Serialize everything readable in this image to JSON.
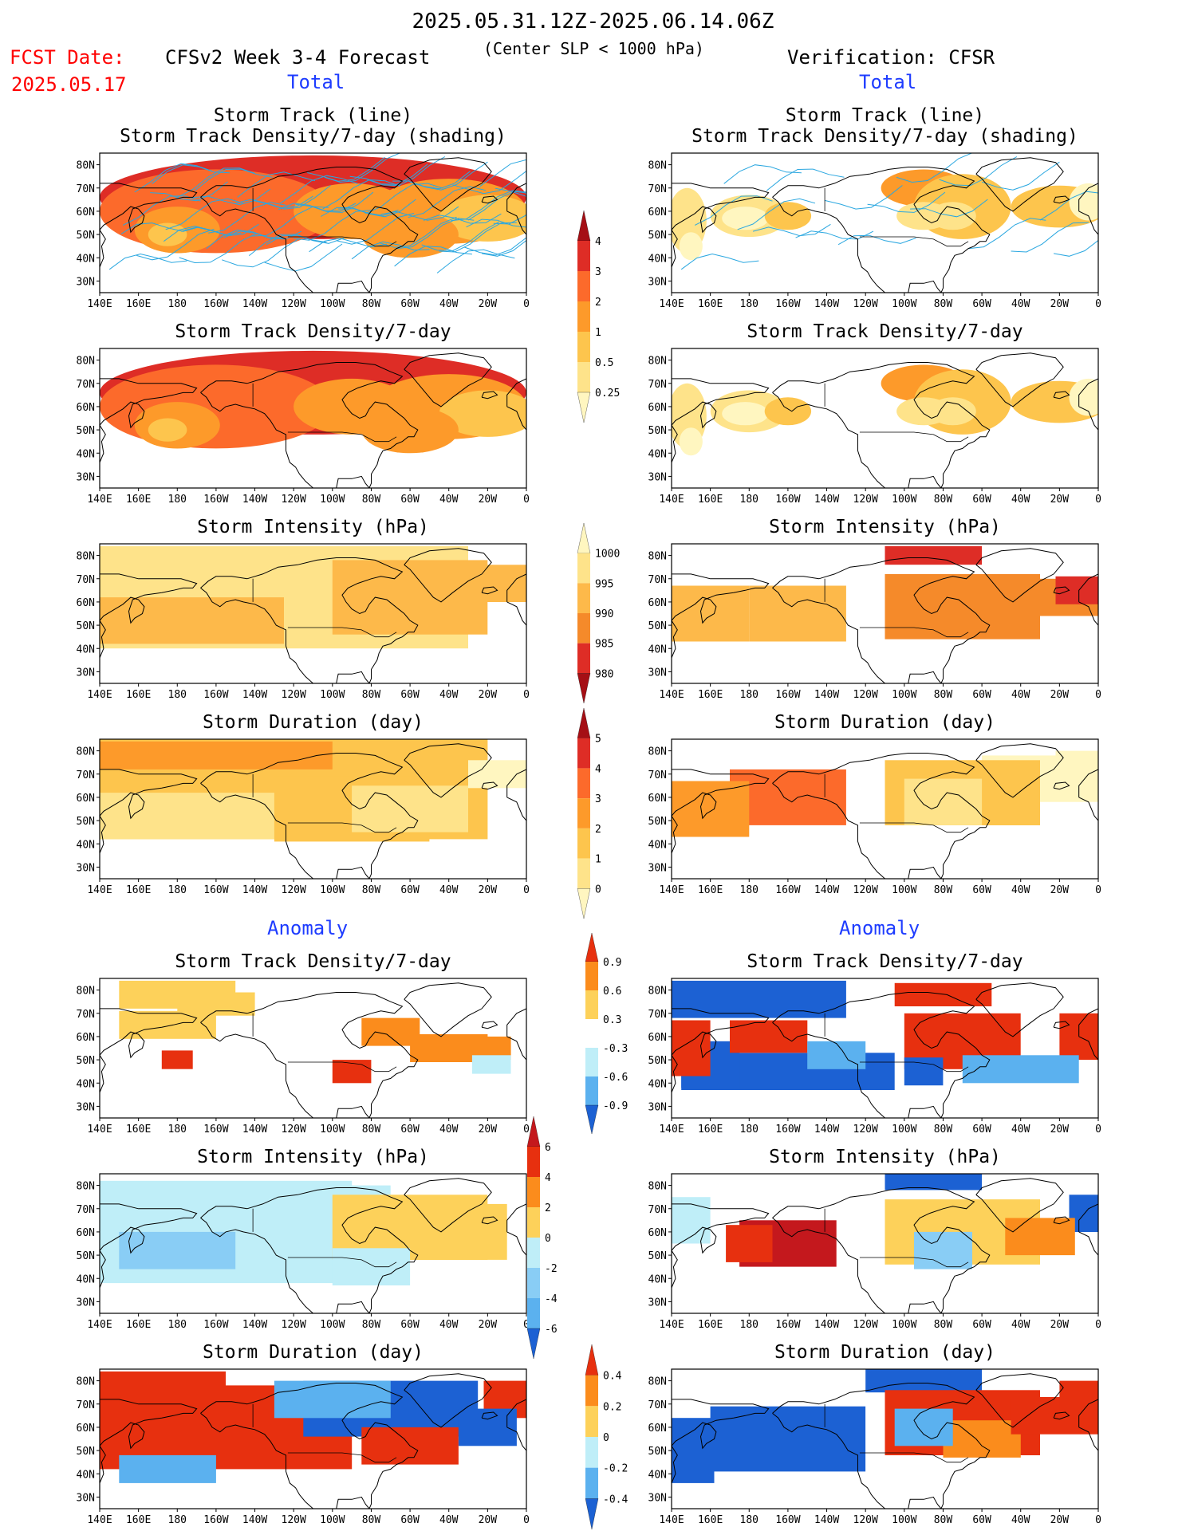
{
  "header": {
    "date_range": "2025.05.31.12Z-2025.06.14.06Z",
    "fcst_label": "FCST Date:",
    "fcst_date": "2025.05.17",
    "left_title": "CFSv2 Week 3-4 Forecast",
    "subtitle": "(Center SLP < 1000 hPa)",
    "right_title": "Verification: CFSR",
    "total_label": "Total",
    "anomaly_label": "Anomaly"
  },
  "panel_titles": {
    "track_line": "Storm Track (line)",
    "track_shading": "Storm Track Density/7-day (shading)",
    "density": "Storm Track Density/7-day",
    "intensity": "Storm Intensity (hPa)",
    "duration": "Storm Duration (day)"
  },
  "axes": {
    "lat_labels": [
      "80N",
      "70N",
      "60N",
      "50N",
      "40N",
      "30N"
    ],
    "lon_labels": [
      "140E",
      "160E",
      "180",
      "160W",
      "140W",
      "120W",
      "100W",
      "80W",
      "60W",
      "40W",
      "20W",
      "0"
    ]
  },
  "colorbars": {
    "density_total": {
      "labels": [
        "4",
        "3",
        "2",
        "1",
        "0.5",
        "0.25"
      ],
      "colors": [
        "#a50f15",
        "#de2d26",
        "#fc6a2b",
        "#fd9a2a",
        "#fdc54d",
        "#fee38a",
        "#fff6c0"
      ]
    },
    "intensity_total": {
      "labels": [
        "1000",
        "995",
        "990",
        "985",
        "980"
      ],
      "colors": [
        "#fff6c0",
        "#fee38a",
        "#fdb94a",
        "#f58a2a",
        "#de2d26",
        "#a50f15"
      ]
    },
    "duration_total": {
      "labels": [
        "5",
        "4",
        "3",
        "2",
        "1",
        "0"
      ],
      "colors": [
        "#a50f15",
        "#de2d26",
        "#fc6a2b",
        "#fd9a2a",
        "#fdc54d",
        "#fee38a",
        "#fff6c0"
      ]
    },
    "density_anom": {
      "labels": [
        "0.9",
        "0.6",
        "0.3",
        "-0.3",
        "-0.6",
        "-0.9"
      ],
      "colors": [
        "#e7300f",
        "#fb8c1c",
        "#fdd15a",
        "#ffffff",
        "#bfeef8",
        "#5bb1ef",
        "#1c61d3"
      ]
    },
    "intensity_anom": {
      "labels": [
        "6",
        "4",
        "2",
        "0",
        "-2",
        "-4",
        "-6"
      ],
      "colors": [
        "#c4181d",
        "#e7300f",
        "#fb8c1c",
        "#fdd15a",
        "#bfeef8",
        "#89cdf5",
        "#5bb1ef",
        "#1c61d3"
      ]
    },
    "duration_anom": {
      "labels": [
        "0.4",
        "0.2",
        "0",
        "-0.2",
        "-0.4"
      ],
      "colors": [
        "#e7300f",
        "#fb8c1c",
        "#fdd15a",
        "#bfeef8",
        "#5bb1ef",
        "#1c61d3"
      ]
    }
  },
  "map_colors": {
    "track_line": "#2aa7e0",
    "land_outline": "#000000"
  }
}
